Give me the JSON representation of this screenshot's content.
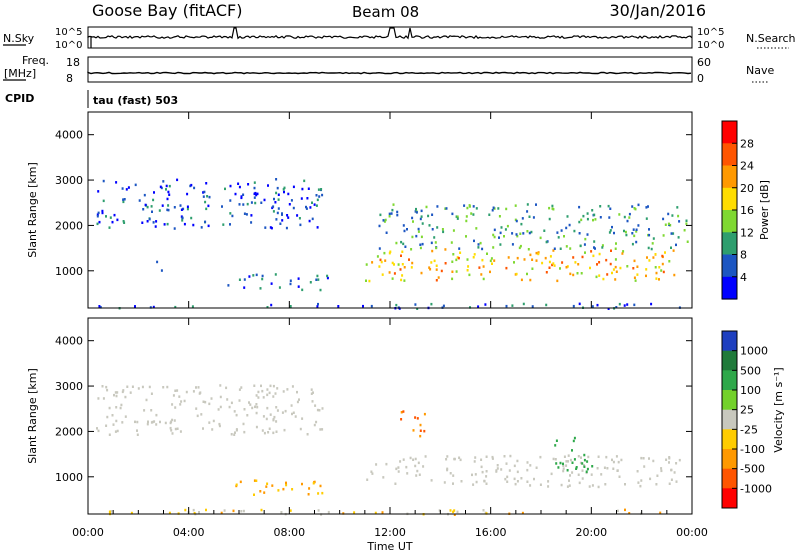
{
  "header": {
    "station": "Goose Bay (fitACF)",
    "beam": "Beam 08",
    "date": "30/Jan/2016"
  },
  "top_panels": {
    "nsky_label": "N.Sky",
    "nsearch_label": "N.Search",
    "count_ticks_left": [
      "10^5",
      "10^0"
    ],
    "count_ticks_right": [
      "10^5",
      "10^0"
    ],
    "freq_label_1": "Freq.",
    "freq_label_2": "[MHz]",
    "freq_ticks": [
      "18",
      "8"
    ],
    "nave_label": "Nave",
    "nave_ticks": [
      "60",
      "0"
    ],
    "cpid_label": "CPID",
    "cpid_text": "tau (fast) 503"
  },
  "chart_data": [
    {
      "type": "heatmap",
      "name": "power",
      "ylabel": "Slant Range [km]",
      "xlabel": "",
      "yticks": [
        "4000",
        "3000",
        "2000",
        "1000"
      ],
      "ylim": [
        180,
        4500
      ],
      "xlim_hours": [
        0,
        24
      ],
      "colorbar_label": "Power [dB]",
      "colorbar_ticks": [
        "28",
        "24",
        "20",
        "16",
        "12",
        "8",
        "4"
      ],
      "colorbar_colors": [
        "#ff0000",
        "#ff5500",
        "#ff9900",
        "#ffdd00",
        "#7fd832",
        "#2e9e6e",
        "#1c56c2",
        "#0000ff"
      ],
      "echo_regions": [
        {
          "t0": 0.3,
          "t1": 9.3,
          "r0": 1950,
          "r1": 3050,
          "level": 5
        },
        {
          "t0": 2.5,
          "t1": 3.0,
          "r0": 1000,
          "r1": 1250,
          "level": 6
        },
        {
          "t0": 5.5,
          "t1": 9.5,
          "r0": 600,
          "r1": 950,
          "level": 6
        },
        {
          "t0": 11.0,
          "t1": 23.6,
          "r0": 800,
          "r1": 1500,
          "level": 20
        },
        {
          "t0": 11.5,
          "t1": 23.8,
          "r0": 1500,
          "r1": 2500,
          "level": 10
        },
        {
          "t0": 0.0,
          "t1": 24.0,
          "r0": 190,
          "r1": 300,
          "level": 6
        }
      ]
    },
    {
      "type": "heatmap",
      "name": "velocity",
      "ylabel": "Slant Range [km]",
      "xlabel": "Time UT",
      "yticks": [
        "4000",
        "3000",
        "2000",
        "1000"
      ],
      "ylim": [
        180,
        4500
      ],
      "xticks": [
        "00:00",
        "04:00",
        "08:00",
        "12:00",
        "16:00",
        "20:00",
        "00:00"
      ],
      "xlim_hours": [
        0,
        24
      ],
      "colorbar_label": "Velocity [m s⁻¹]",
      "colorbar_ticks": [
        "1000",
        "500",
        "100",
        "25",
        "-25",
        "-100",
        "-500",
        "-1000"
      ],
      "colorbar_colors": [
        "#1e3fbf",
        "#1f7a3a",
        "#2ea84a",
        "#73d12a",
        "#c8c8be",
        "#ffcc00",
        "#ff9900",
        "#ff5500",
        "#ff0000"
      ],
      "echo_regions": [
        {
          "t0": 0.3,
          "t1": 9.3,
          "r0": 1950,
          "r1": 3050,
          "level": 0
        },
        {
          "t0": 5.5,
          "t1": 9.5,
          "r0": 600,
          "r1": 950,
          "level": -60
        },
        {
          "t0": 11.0,
          "t1": 23.6,
          "r0": 800,
          "r1": 1500,
          "level": 0
        },
        {
          "t0": 12.4,
          "t1": 13.4,
          "r0": 1900,
          "r1": 2500,
          "level": -300
        },
        {
          "t0": 18.5,
          "t1": 20.0,
          "r0": 1100,
          "r1": 1900,
          "level": 120
        },
        {
          "t0": 0.0,
          "t1": 24.0,
          "r0": 190,
          "r1": 300,
          "level": -40
        }
      ]
    }
  ]
}
